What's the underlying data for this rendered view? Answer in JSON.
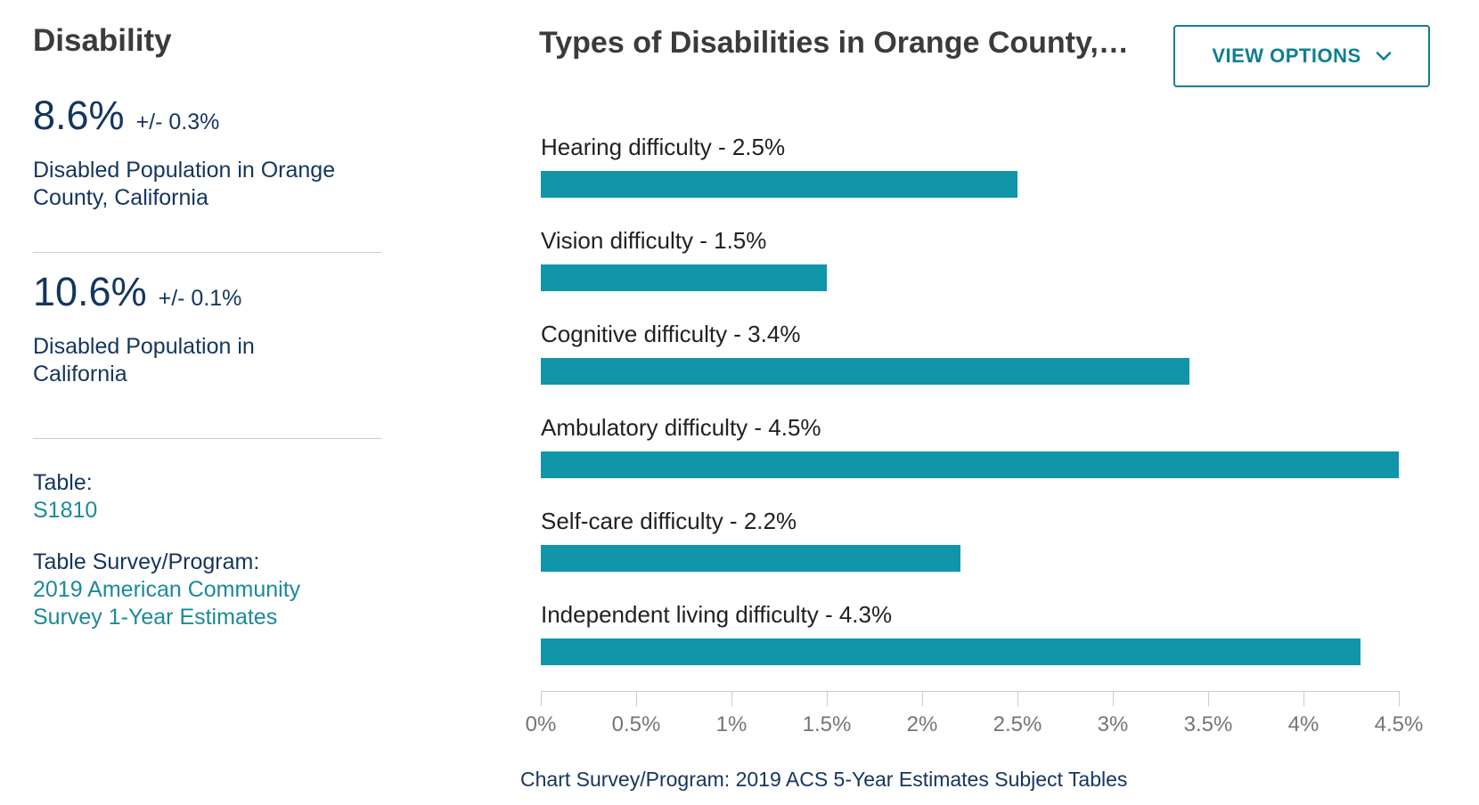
{
  "sidebar": {
    "title": "Disability",
    "stats": [
      {
        "value": "8.6%",
        "moe": "+/- 0.3%",
        "label": "Disabled Population in Orange County, California"
      },
      {
        "value": "10.6%",
        "moe": "+/- 0.1%",
        "label": "Disabled Population in California"
      }
    ],
    "table": {
      "label": "Table:",
      "link": "S1810"
    },
    "survey": {
      "label": "Table Survey/Program:",
      "link": "2019 American Community Survey 1-Year Estimates"
    }
  },
  "header": {
    "title": "Types of Disabilities in Orange County,…",
    "view_options": "VIEW OPTIONS"
  },
  "footer": {
    "text": "Chart Survey/Program: 2019 ACS 5-Year Estimates Subject Tables"
  },
  "colors": {
    "navy_text": "#14355e",
    "teal_link": "#1b8a99",
    "teal_button": "#0f7e93",
    "bar": "#1095a9",
    "heading": "#3b3b3b",
    "bar_label": "#212121",
    "axis_label": "#757575",
    "axis_line": "#cccccc",
    "divider": "#cccccc"
  },
  "chart_data": {
    "type": "bar",
    "orientation": "horizontal",
    "title": "Types of Disabilities in Orange County,…",
    "categories": [
      "Hearing difficulty",
      "Vision difficulty",
      "Cognitive difficulty",
      "Ambulatory difficulty",
      "Self-care difficulty",
      "Independent living difficulty"
    ],
    "values": [
      2.5,
      1.5,
      3.4,
      4.5,
      2.2,
      4.3
    ],
    "bar_labels": [
      "Hearing difficulty - 2.5%",
      "Vision difficulty - 1.5%",
      "Cognitive difficulty - 3.4%",
      "Ambulatory difficulty - 4.5%",
      "Self-care difficulty - 2.2%",
      "Independent living difficulty - 4.3%"
    ],
    "unit": "%",
    "xlim": [
      0,
      4.5
    ],
    "x_ticks": [
      "0%",
      "0.5%",
      "1%",
      "1.5%",
      "2%",
      "2.5%",
      "3%",
      "3.5%",
      "4%",
      "4.5%"
    ],
    "grid": false,
    "legend": false,
    "bar_color": "#1095a9"
  }
}
